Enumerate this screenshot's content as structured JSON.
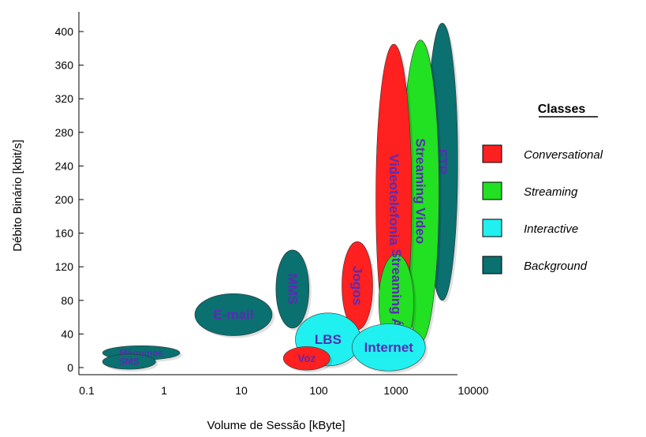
{
  "colors": {
    "conversational": "#ff2020",
    "streaming": "#22e022",
    "interactive": "#20f0f0",
    "background": "#0a7070",
    "label": "#5a2bb5"
  },
  "chart_data": {
    "type": "bubble",
    "xlabel": "Volume de Sessão [kByte]",
    "ylabel": "Débito Binário [kbit/s]",
    "xscale": "log",
    "xlim": [
      0.1,
      10000
    ],
    "ylim": [
      0,
      400
    ],
    "xticks": [
      0.1,
      1,
      10,
      100,
      1000,
      10000
    ],
    "xtick_labels": [
      "0.1",
      "1",
      "10",
      "100",
      "1000",
      "10000"
    ],
    "yticks": [
      0,
      40,
      80,
      120,
      160,
      200,
      240,
      280,
      320,
      360,
      400
    ],
    "ytick_labels": [
      "0",
      "40",
      "80",
      "120",
      "160",
      "200",
      "240",
      "280",
      "320",
      "360",
      "400"
    ],
    "grid": false,
    "legend": {
      "title": "Classes",
      "position": "right",
      "entries": [
        {
          "label": "Conversational",
          "color": "#ff2020"
        },
        {
          "label": "Streaming",
          "color": "#22e022"
        },
        {
          "label": "Interactive",
          "color": "#20f0f0"
        },
        {
          "label": "Background",
          "color": "#0a7070"
        }
      ]
    },
    "services": [
      {
        "name": "FTP",
        "class": "Background",
        "x": 4000,
        "y": 255,
        "x_range": [
          2500,
          6300
        ],
        "y_range": [
          80,
          410
        ],
        "label_vertical": true
      },
      {
        "name": "Streaming Video",
        "class": "Streaming",
        "x": 2000,
        "y": 210,
        "x_range": [
          1200,
          3600
        ],
        "y_range": [
          30,
          390
        ],
        "label_vertical": true
      },
      {
        "name": "Videotelefonia",
        "class": "Conversational",
        "x": 900,
        "y": 200,
        "x_range": [
          550,
          1600
        ],
        "y_range": [
          15,
          385
        ],
        "label_vertical": true
      },
      {
        "name": "Streaming Áudio",
        "class": "Streaming",
        "x": 1000,
        "y": 80,
        "x_range": [
          600,
          1700
        ],
        "y_range": [
          20,
          135
        ],
        "label_vertical": true
      },
      {
        "name": "Jogos",
        "class": "Conversational",
        "x": 300,
        "y": 100,
        "x_range": [
          200,
          500
        ],
        "y_range": [
          45,
          150
        ],
        "label_vertical": true
      },
      {
        "name": "MMS",
        "class": "Background",
        "x": 45,
        "y": 100,
        "x_range": [
          28,
          75
        ],
        "y_range": [
          47,
          140
        ],
        "label_vertical": true
      },
      {
        "name": "E-mail",
        "class": "Background",
        "x": 7,
        "y": 63,
        "x_range": [
          2.5,
          25
        ],
        "y_range": [
          38,
          88
        ],
        "label_vertical": false
      },
      {
        "name": "LBS",
        "class": "Interactive",
        "x": 150,
        "y": 35,
        "x_range": [
          50,
          350
        ],
        "y_range": [
          2,
          65
        ],
        "label_vertical": false
      },
      {
        "name": "Internet",
        "class": "Interactive",
        "x": 800,
        "y": 24,
        "x_range": [
          270,
          2400
        ],
        "y_range": [
          -4,
          52
        ],
        "label_vertical": false
      },
      {
        "name": "Voz",
        "class": "Conversational",
        "x": 70,
        "y": 11,
        "x_range": [
          35,
          140
        ],
        "y_range": [
          -3,
          25
        ],
        "label_vertical": false
      },
      {
        "name": "Máquinas",
        "class": "Background",
        "x": 0.5,
        "y": 17,
        "x_range": [
          0.16,
          1.6
        ],
        "y_range": [
          9,
          26
        ],
        "label_vertical": false
      },
      {
        "name": "SMS",
        "class": "Background",
        "x": 0.35,
        "y": 7,
        "x_range": [
          0.16,
          0.78
        ],
        "y_range": [
          -2,
          16
        ],
        "label_vertical": false
      }
    ]
  }
}
